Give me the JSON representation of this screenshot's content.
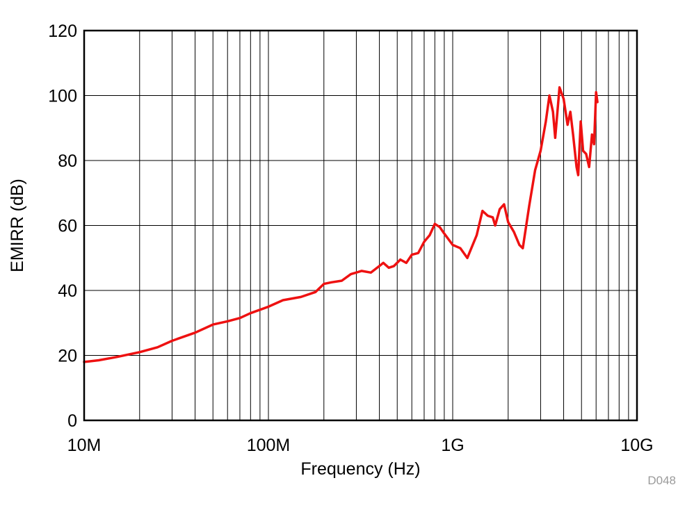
{
  "figure_id": "D048",
  "chart_data": {
    "type": "line",
    "title": "",
    "xlabel": "Frequency (Hz)",
    "ylabel": "EMIRR (dB)",
    "xscale": "log",
    "xlim": [
      10000000,
      10000000000
    ],
    "ylim": [
      0,
      120
    ],
    "x_ticks": [
      {
        "value": 10000000,
        "label": "10M"
      },
      {
        "value": 100000000,
        "label": "100M"
      },
      {
        "value": 1000000000,
        "label": "1G"
      },
      {
        "value": 10000000000,
        "label": "10G"
      }
    ],
    "y_ticks": [
      {
        "value": 0,
        "label": "0"
      },
      {
        "value": 20,
        "label": "20"
      },
      {
        "value": 40,
        "label": "40"
      },
      {
        "value": 60,
        "label": "60"
      },
      {
        "value": 80,
        "label": "80"
      },
      {
        "value": 100,
        "label": "100"
      },
      {
        "value": 120,
        "label": "120"
      }
    ],
    "grid": true,
    "legend": "none",
    "series": [
      {
        "color": "#ee1111",
        "x": [
          10000000,
          12000000,
          15000000,
          20000000,
          25000000,
          30000000,
          40000000,
          50000000,
          60000000,
          70000000,
          80000000,
          100000000,
          120000000,
          150000000,
          180000000,
          200000000,
          220000000,
          250000000,
          280000000,
          320000000,
          360000000,
          400000000,
          420000000,
          450000000,
          480000000,
          520000000,
          560000000,
          600000000,
          650000000,
          700000000,
          750000000,
          800000000,
          850000000,
          900000000,
          1000000000,
          1100000000,
          1200000000,
          1350000000,
          1450000000,
          1550000000,
          1650000000,
          1700000000,
          1800000000,
          1900000000,
          2000000000,
          2150000000,
          2300000000,
          2400000000,
          2600000000,
          2800000000,
          3000000000,
          3200000000,
          3350000000,
          3500000000,
          3600000000,
          3800000000,
          4000000000,
          4200000000,
          4350000000,
          4500000000,
          4700000000,
          4800000000,
          4950000000,
          5100000000,
          5300000000,
          5500000000,
          5700000000,
          5850000000,
          6000000000,
          6100000000
        ],
        "y": [
          18,
          18.5,
          19.5,
          21,
          22.5,
          24.5,
          27,
          29.5,
          30.5,
          31.5,
          33,
          35,
          37,
          38,
          39.5,
          42,
          42.5,
          43,
          45,
          46,
          45.5,
          47.5,
          48.5,
          47,
          47.5,
          49.5,
          48.5,
          51,
          51.5,
          55,
          57,
          60.5,
          59.5,
          57.5,
          54,
          53,
          50,
          57,
          64.5,
          63,
          62.5,
          60,
          65,
          66.5,
          61,
          58,
          54,
          53,
          66,
          77,
          83,
          92,
          100,
          95,
          87,
          102.5,
          99,
          91,
          95,
          88,
          78,
          75.5,
          92,
          83,
          82,
          78,
          88,
          85,
          101,
          98
        ]
      }
    ]
  }
}
